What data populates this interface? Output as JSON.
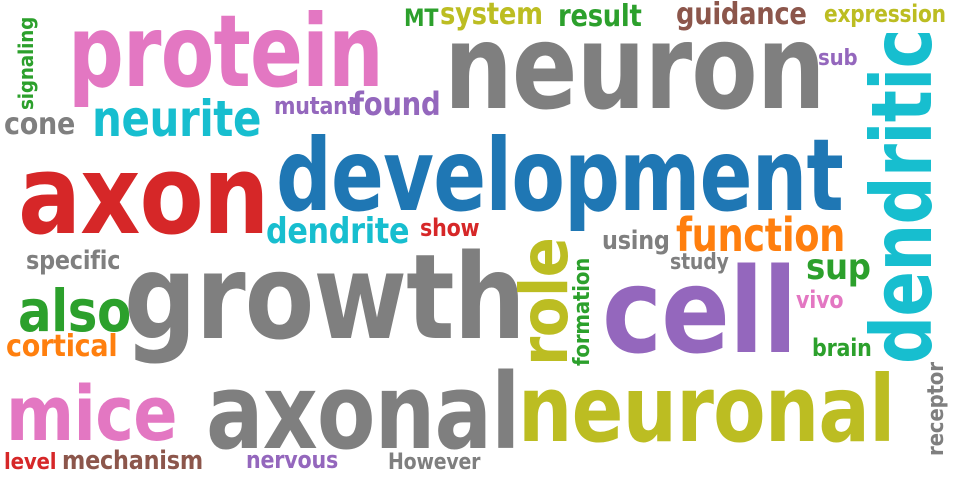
{
  "colors": {
    "gray": "#7f7f7f",
    "pink": "#e377c2",
    "red": "#d62728",
    "blue": "#1f77b4",
    "cyan": "#17becf",
    "olive": "#bcbd22",
    "green": "#2ca02c",
    "orange": "#ff7f0e",
    "purple": "#9467bd",
    "brown": "#8c564b"
  },
  "words": {
    "neuron": "neuron",
    "development": "development",
    "growth": "growth",
    "axon": "axon",
    "protein": "protein",
    "axonal": "axonal",
    "neuronal": "neuronal",
    "cell": "cell",
    "dendritic": "dendritic",
    "role": "role",
    "mice": "mice",
    "neurite": "neurite",
    "function": "function",
    "also": "also",
    "dendrite": "dendrite",
    "system": "system",
    "result": "result",
    "guidance": "guidance",
    "expression": "expression",
    "found": "found",
    "cortical": "cortical",
    "cone": "cone",
    "mechanism": "mechanism",
    "sup": "sup",
    "formation": "formation",
    "specific": "specific",
    "using": "using",
    "mutant": "mutant",
    "signaling": "signaling",
    "show": "show",
    "brain": "brain",
    "study": "study",
    "vivo": "vivo",
    "nervous": "nervous",
    "However": "However",
    "receptor": "receptor",
    "level": "level",
    "MT": "MT",
    "sub": "sub"
  }
}
